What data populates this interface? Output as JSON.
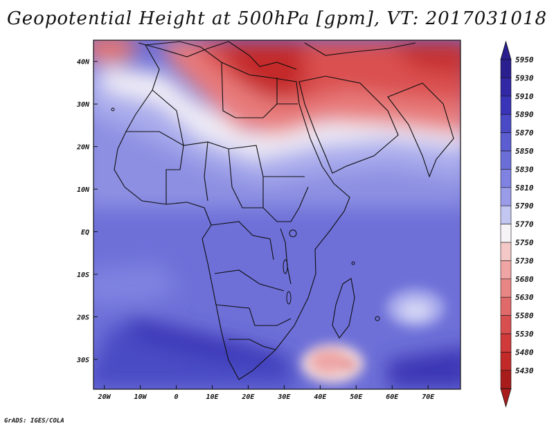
{
  "title": "Geopotential Height at 500hPa [gpm], VT: 2017031018",
  "credit": "GrADS: IGES/COLA",
  "map": {
    "projection": "lat-lon",
    "lon_range": [
      -23,
      79
    ],
    "lat_range": [
      -37,
      45
    ],
    "x_ticks": [
      {
        "lon": -20,
        "label": "20W"
      },
      {
        "lon": -10,
        "label": "10W"
      },
      {
        "lon": 0,
        "label": "0"
      },
      {
        "lon": 10,
        "label": "10E"
      },
      {
        "lon": 20,
        "label": "20E"
      },
      {
        "lon": 30,
        "label": "30E"
      },
      {
        "lon": 40,
        "label": "40E"
      },
      {
        "lon": 50,
        "label": "50E"
      },
      {
        "lon": 60,
        "label": "60E"
      },
      {
        "lon": 70,
        "label": "70E"
      }
    ],
    "y_ticks": [
      {
        "lat": 40,
        "label": "40N"
      },
      {
        "lat": 30,
        "label": "30N"
      },
      {
        "lat": 20,
        "label": "20N"
      },
      {
        "lat": 10,
        "label": "10N"
      },
      {
        "lat": 0,
        "label": "EQ"
      },
      {
        "lat": -10,
        "label": "10S"
      },
      {
        "lat": -20,
        "label": "20S"
      },
      {
        "lat": -30,
        "label": "30S"
      }
    ]
  },
  "colorbar": {
    "levels": [
      {
        "label": "5950",
        "color": "#2a1f8f"
      },
      {
        "label": "5930",
        "color": "#3228a6"
      },
      {
        "label": "5910",
        "color": "#3a35b8"
      },
      {
        "label": "5890",
        "color": "#4a49c6"
      },
      {
        "label": "5870",
        "color": "#5b5dd0"
      },
      {
        "label": "5850",
        "color": "#6c6ed8"
      },
      {
        "label": "5830",
        "color": "#7f82e0"
      },
      {
        "label": "5810",
        "color": "#9a9ce8"
      },
      {
        "label": "5790",
        "color": "#c4c6f2"
      },
      {
        "label": "5770",
        "color": "#f6f3f6"
      },
      {
        "label": "5750",
        "color": "#f5c8c8"
      },
      {
        "label": "5730",
        "color": "#f0a5a5"
      },
      {
        "label": "5680",
        "color": "#e88686"
      },
      {
        "label": "5630",
        "color": "#e06a6a"
      },
      {
        "label": "5580",
        "color": "#d84f4f"
      },
      {
        "label": "5530",
        "color": "#d03a3a"
      },
      {
        "label": "5480",
        "color": "#c22a2a"
      },
      {
        "label": "5430",
        "color": "#a81c1c"
      }
    ]
  }
}
